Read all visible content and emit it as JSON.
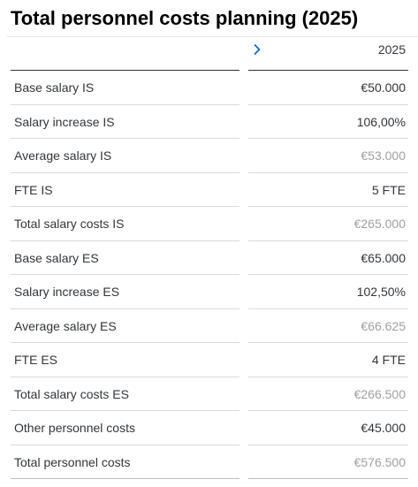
{
  "page": {
    "title": "Total personnel costs planning (2025)"
  },
  "table": {
    "column_header": "2025",
    "rows": [
      {
        "label": "Base salary IS",
        "value": "€50.000",
        "calculated": false
      },
      {
        "label": "Salary increase IS",
        "value": "106,00%",
        "calculated": false
      },
      {
        "label": "Average salary IS",
        "value": "€53.000",
        "calculated": true
      },
      {
        "label": "FTE IS",
        "value": "5 FTE",
        "calculated": false
      },
      {
        "label": "Total salary costs IS",
        "value": "€265.000",
        "calculated": true
      },
      {
        "label": "Base salary ES",
        "value": "€65.000",
        "calculated": false
      },
      {
        "label": "Salary increase ES",
        "value": "102,50%",
        "calculated": false
      },
      {
        "label": "Average salary ES",
        "value": "€66.625",
        "calculated": true
      },
      {
        "label": "FTE ES",
        "value": "4 FTE",
        "calculated": false
      },
      {
        "label": "Total salary costs ES",
        "value": "€266.500",
        "calculated": true
      },
      {
        "label": "Other personnel costs",
        "value": "€45.000",
        "calculated": false
      },
      {
        "label": "Total personnel costs",
        "value": "€576.500",
        "calculated": true
      }
    ]
  },
  "icons": {
    "expand": "chevron-right-icon"
  },
  "colors": {
    "accent": "#0a6ed1",
    "text": "#32363a",
    "calculated_text": "#a0a0a0"
  }
}
